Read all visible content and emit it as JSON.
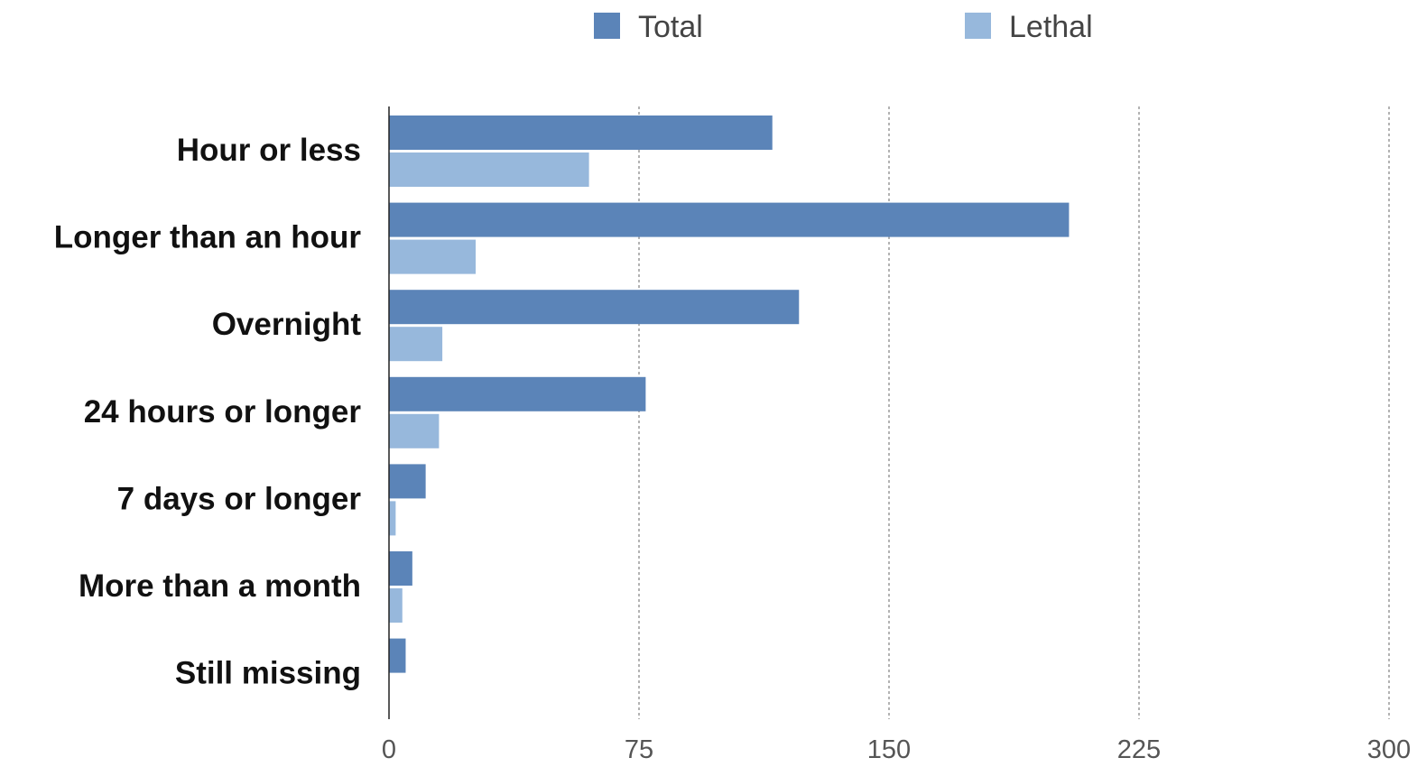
{
  "chart_data": {
    "type": "bar",
    "orientation": "horizontal",
    "categories": [
      "Hour or less",
      "Longer than an hour",
      "Overnight",
      "24 hours or longer",
      "7 days or longer",
      "More than a month",
      "Still missing"
    ],
    "series": [
      {
        "name": "Total",
        "color": "#5b84b8",
        "values": [
          115,
          204,
          123,
          77,
          11,
          7,
          5
        ]
      },
      {
        "name": "Lethal",
        "color": "#97b8dc",
        "values": [
          60,
          26,
          16,
          15,
          2,
          4,
          0
        ]
      }
    ],
    "xlim": [
      0,
      300
    ],
    "xticks": [
      0,
      75,
      150,
      225,
      300
    ],
    "grid": "vertical-dashed",
    "legend_position": "top-center",
    "title": "",
    "xlabel": "",
    "ylabel": ""
  }
}
